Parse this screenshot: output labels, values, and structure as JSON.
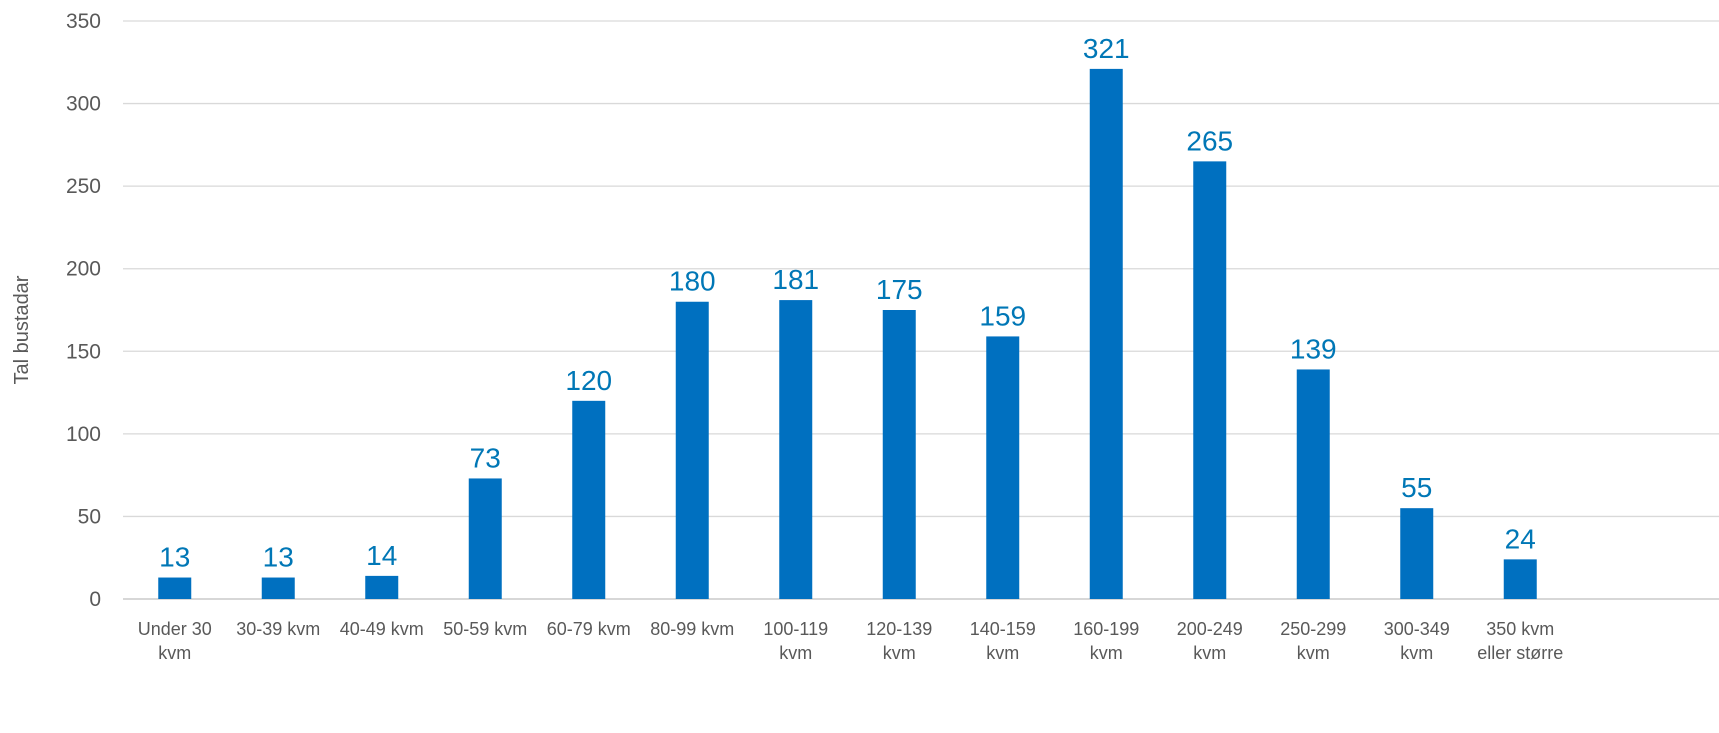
{
  "chart_data": {
    "type": "bar",
    "title": "",
    "xlabel": "",
    "ylabel": "Tal bustadar",
    "ylim": [
      0,
      350
    ],
    "yticks": [
      0,
      50,
      100,
      150,
      200,
      250,
      300,
      350
    ],
    "grid": true,
    "legend": "none",
    "categories": [
      [
        "Under 30",
        "kvm"
      ],
      [
        "30-39 kvm"
      ],
      [
        "40-49 kvm"
      ],
      [
        "50-59 kvm"
      ],
      [
        "60-79 kvm"
      ],
      [
        "80-99 kvm"
      ],
      [
        "100-119",
        "kvm"
      ],
      [
        "120-139",
        "kvm"
      ],
      [
        "140-159",
        "kvm"
      ],
      [
        "160-199",
        "kvm"
      ],
      [
        "200-249",
        "kvm"
      ],
      [
        "250-299",
        "kvm"
      ],
      [
        "300-349",
        "kvm"
      ],
      [
        "350 kvm",
        "eller større"
      ]
    ],
    "values": [
      13,
      13,
      14,
      73,
      120,
      180,
      181,
      175,
      159,
      321,
      265,
      139,
      55,
      24
    ],
    "bar_color": "#0070c0",
    "label_color": "#0077b6"
  }
}
